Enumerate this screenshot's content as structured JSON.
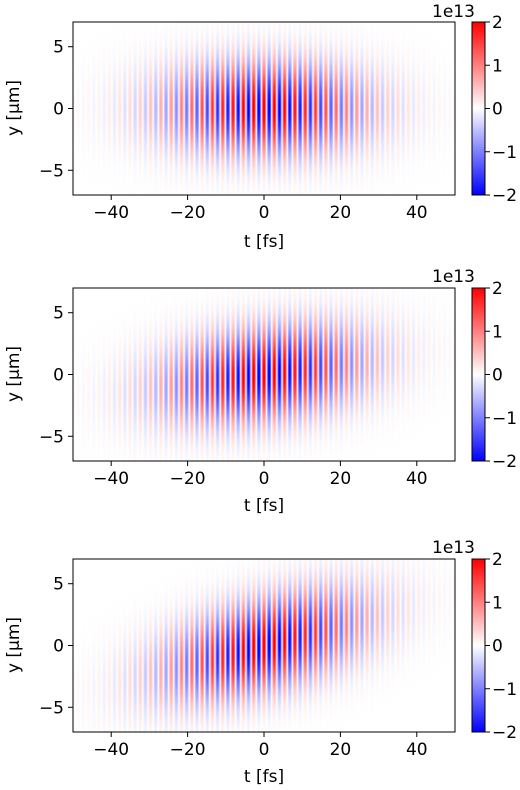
{
  "chart_data": [
    {
      "type": "heatmap",
      "xlabel": "t [fs]",
      "ylabel": "y [μm]",
      "xlim": [
        -50,
        50
      ],
      "ylim": [
        -7,
        7
      ],
      "xticks": [
        -40,
        -20,
        0,
        20,
        40
      ],
      "yticks": [
        -5,
        0,
        5
      ],
      "colorbar": {
        "min": -2,
        "max": 2,
        "ticks": [
          -2,
          -1,
          0,
          1,
          2
        ],
        "offset_label": "1e13",
        "colormap": "bwr",
        "low_color": "#0000ff",
        "mid_color": "#ffffff",
        "high_color": "#ff0000"
      },
      "pulse": {
        "center_t": 0,
        "center_y": 0,
        "duration_fs": 25,
        "width_um": 3.5,
        "period_fs": 2.7,
        "tilt_um_per_fs": 0.0
      }
    },
    {
      "type": "heatmap",
      "xlabel": "t [fs]",
      "ylabel": "y [μm]",
      "xlim": [
        -50,
        50
      ],
      "ylim": [
        -7,
        7
      ],
      "xticks": [
        -40,
        -20,
        0,
        20,
        40
      ],
      "yticks": [
        -5,
        0,
        5
      ],
      "colorbar": {
        "min": -2,
        "max": 2,
        "ticks": [
          -2,
          -1,
          0,
          1,
          2
        ],
        "offset_label": "1e13",
        "colormap": "bwr",
        "low_color": "#0000ff",
        "mid_color": "#ffffff",
        "high_color": "#ff0000"
      },
      "pulse": {
        "center_t": 0,
        "center_y": 0,
        "duration_fs": 25,
        "width_um": 3.5,
        "period_fs": 2.7,
        "tilt_um_per_fs": 0.04
      }
    },
    {
      "type": "heatmap",
      "xlabel": "t [fs]",
      "ylabel": "y [μm]",
      "xlim": [
        -50,
        50
      ],
      "ylim": [
        -7,
        7
      ],
      "xticks": [
        -40,
        -20,
        0,
        20,
        40
      ],
      "yticks": [
        -5,
        0,
        5
      ],
      "colorbar": {
        "min": -2,
        "max": 2,
        "ticks": [
          -2,
          -1,
          0,
          1,
          2
        ],
        "offset_label": "1e13",
        "colormap": "bwr",
        "low_color": "#0000ff",
        "mid_color": "#ffffff",
        "high_color": "#ff0000"
      },
      "pulse": {
        "center_t": 0,
        "center_y": 0,
        "duration_fs": 25,
        "width_um": 3.5,
        "period_fs": 2.7,
        "tilt_um_per_fs": 0.08
      }
    }
  ]
}
